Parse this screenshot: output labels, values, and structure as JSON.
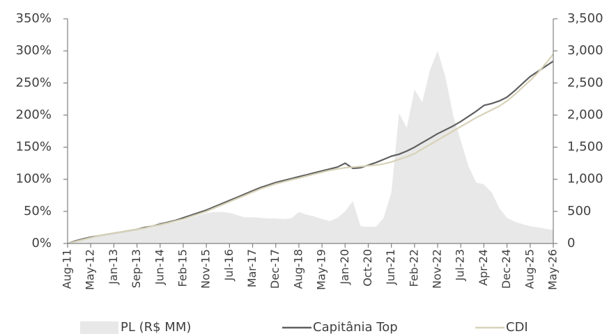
{
  "chart_data": {
    "type": "line",
    "categories": [
      "Aug-11",
      null,
      null,
      "May-12",
      null,
      null,
      "Jan-13",
      null,
      null,
      "Sep-13",
      null,
      null,
      "Jun-14",
      null,
      null,
      "Feb-15",
      null,
      null,
      "Nov-15",
      null,
      null,
      "Jul-16",
      null,
      null,
      "Mar-17",
      null,
      null,
      "Dec-17",
      null,
      null,
      "Aug-18",
      null,
      null,
      "May-19",
      null,
      null,
      "Jan-20",
      null,
      null,
      "Oct-20",
      null,
      null,
      "Jun-21",
      null,
      null,
      "Feb-22",
      null,
      null,
      "Nov-22",
      null,
      null,
      "Jul-23",
      null,
      null,
      "Apr-24",
      null,
      null,
      "Dec-24",
      null,
      null,
      "Aug-25",
      null,
      null,
      "May-26"
    ],
    "series": [
      {
        "name": "PL (R$ MM)",
        "type": "area",
        "axis": "y2",
        "color": "#e8e8e8",
        "values": [
          0,
          30,
          60,
          90,
          110,
          130,
          150,
          170,
          190,
          210,
          240,
          270,
          340,
          310,
          330,
          360,
          400,
          440,
          470,
          490,
          490,
          480,
          440,
          410,
          410,
          400,
          390,
          390,
          380,
          390,
          490,
          450,
          420,
          380,
          350,
          400,
          500,
          660,
          270,
          260,
          260,
          400,
          800,
          2030,
          1800,
          2400,
          2200,
          2700,
          3000,
          2600,
          2000,
          1600,
          1200,
          950,
          920,
          800,
          550,
          400,
          340,
          300,
          270,
          250,
          230,
          210
        ]
      },
      {
        "name": "Capitânia Top",
        "type": "line",
        "color": "#5f5f5f",
        "values": [
          0,
          4,
          7,
          10,
          12,
          14,
          16,
          18,
          20,
          22,
          25,
          27,
          30,
          33,
          36,
          40,
          44,
          48,
          52,
          57,
          62,
          67,
          72,
          77,
          82,
          87,
          91,
          95,
          98,
          101,
          104,
          107,
          110,
          113,
          116,
          119,
          125,
          117,
          118,
          122,
          126,
          131,
          136,
          139,
          144,
          150,
          157,
          164,
          171,
          177,
          183,
          190,
          198,
          206,
          215,
          218,
          222,
          228,
          238,
          249,
          260,
          268,
          276,
          284
        ]
      },
      {
        "name": "CDI",
        "type": "line",
        "color": "#d8d2b8",
        "values": [
          0,
          3,
          6,
          9,
          12,
          14,
          16,
          18,
          20,
          22,
          24,
          27,
          29,
          32,
          35,
          38,
          42,
          46,
          50,
          55,
          60,
          65,
          70,
          75,
          80,
          85,
          89,
          93,
          96,
          99,
          102,
          105,
          108,
          111,
          114,
          116,
          118,
          119,
          120,
          121,
          122,
          124,
          127,
          131,
          135,
          140,
          147,
          154,
          161,
          168,
          175,
          182,
          189,
          196,
          202,
          208,
          214,
          222,
          232,
          243,
          254,
          266,
          280,
          295
        ]
      }
    ],
    "ylim": [
      0,
      350
    ],
    "yticks": [
      {
        "value": 0,
        "label": "0%"
      },
      {
        "value": 50,
        "label": "50%"
      },
      {
        "value": 100,
        "label": "100%"
      },
      {
        "value": 150,
        "label": "150%"
      },
      {
        "value": 200,
        "label": "200%"
      },
      {
        "value": 250,
        "label": "250%"
      },
      {
        "value": 300,
        "label": "300%"
      },
      {
        "value": 350,
        "label": "350%"
      }
    ],
    "y2lim": [
      0,
      3500
    ],
    "y2ticks": [
      0,
      500,
      {
        "value": 1000,
        "label": "1,000"
      },
      {
        "value": 1500,
        "label": "1,500"
      },
      {
        "value": 2000,
        "label": "2,000"
      },
      {
        "value": 2500,
        "label": "2,500"
      },
      {
        "value": 3000,
        "label": "3,000"
      },
      {
        "value": 3500,
        "label": "3,500"
      }
    ],
    "grid": false,
    "legend": "bottom"
  }
}
